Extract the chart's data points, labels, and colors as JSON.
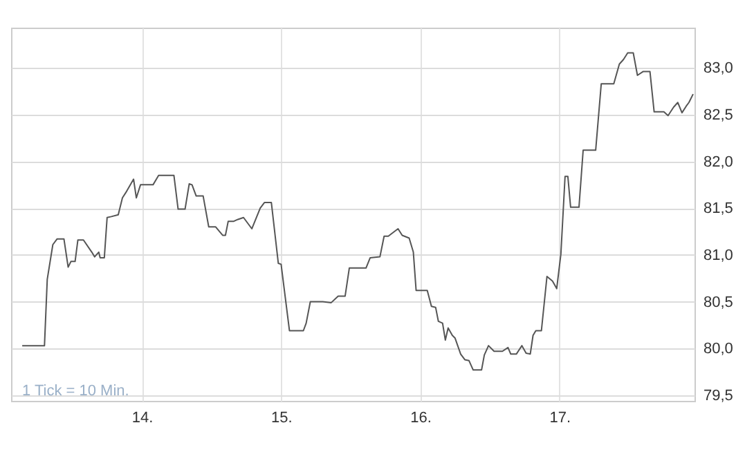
{
  "chart_data": {
    "type": "line",
    "annotations": [
      "1 Tick = 10 Min."
    ],
    "x": [
      13.14,
      13.3,
      13.32,
      13.36,
      13.39,
      13.44,
      13.47,
      13.49,
      13.52,
      13.54,
      13.58,
      13.64,
      13.66,
      13.69,
      13.7,
      13.73,
      13.75,
      13.78,
      13.83,
      13.86,
      13.89,
      13.94,
      13.96,
      13.99,
      14.08,
      14.12,
      14.23,
      14.26,
      14.31,
      14.34,
      14.36,
      14.39,
      14.44,
      14.48,
      14.53,
      14.58,
      14.6,
      14.62,
      14.66,
      14.69,
      14.73,
      14.79,
      14.85,
      14.88,
      14.93,
      14.98,
      15.0,
      15.06,
      15.16,
      15.18,
      15.21,
      15.3,
      15.36,
      15.41,
      15.46,
      15.49,
      15.61,
      15.64,
      15.71,
      15.74,
      15.77,
      15.84,
      15.87,
      15.92,
      15.95,
      15.97,
      16.05,
      16.08,
      16.11,
      16.13,
      16.16,
      16.18,
      16.2,
      16.23,
      16.25,
      16.29,
      16.32,
      16.35,
      16.38,
      16.44,
      16.46,
      16.49,
      16.53,
      16.59,
      16.63,
      16.65,
      16.69,
      16.73,
      16.76,
      16.79,
      16.81,
      16.83,
      16.87,
      16.91,
      16.95,
      16.98,
      17.01,
      17.04,
      17.06,
      17.08,
      17.14,
      17.17,
      17.26,
      17.3,
      17.39,
      17.43,
      17.46,
      17.49,
      17.53,
      17.56,
      17.6,
      17.65,
      17.68,
      17.75,
      17.78,
      17.82,
      17.85,
      17.88,
      17.91,
      17.93,
      17.96
    ],
    "series": [
      {
        "color": "#555555",
        "values": [
          80.03,
          80.03,
          80.74,
          81.11,
          81.17,
          81.17,
          80.87,
          80.93,
          80.93,
          81.16,
          81.16,
          81.03,
          80.98,
          81.03,
          80.97,
          80.97,
          81.4,
          81.41,
          81.43,
          81.61,
          81.68,
          81.81,
          81.61,
          81.75,
          81.75,
          81.85,
          81.85,
          81.49,
          81.49,
          81.76,
          81.75,
          81.63,
          81.63,
          81.3,
          81.3,
          81.21,
          81.21,
          81.36,
          81.36,
          81.38,
          81.4,
          81.28,
          81.5,
          81.56,
          81.56,
          80.91,
          80.9,
          80.19,
          80.19,
          80.27,
          80.5,
          80.5,
          80.49,
          80.56,
          80.56,
          80.86,
          80.86,
          80.97,
          80.98,
          81.2,
          81.2,
          81.28,
          81.21,
          81.18,
          81.03,
          80.62,
          80.62,
          80.45,
          80.44,
          80.29,
          80.27,
          80.09,
          80.22,
          80.14,
          80.11,
          79.94,
          79.88,
          79.87,
          79.77,
          79.77,
          79.93,
          80.03,
          79.97,
          79.97,
          80.01,
          79.94,
          79.94,
          80.03,
          79.95,
          79.94,
          80.14,
          80.19,
          80.19,
          80.77,
          80.72,
          80.64,
          81.01,
          81.84,
          81.84,
          81.51,
          81.51,
          82.12,
          82.12,
          82.83,
          82.83,
          83.04,
          83.09,
          83.16,
          83.16,
          82.92,
          82.96,
          82.96,
          82.53,
          82.53,
          82.49,
          82.58,
          82.63,
          82.52,
          82.59,
          82.63,
          82.72
        ]
      }
    ],
    "xlim": [
      13.06,
      17.97
    ],
    "ylim": [
      79.44,
      83.43
    ],
    "xticks": [
      {
        "value": 14,
        "label": "14."
      },
      {
        "value": 15,
        "label": "15."
      },
      {
        "value": 16,
        "label": "16."
      },
      {
        "value": 17,
        "label": "17."
      }
    ],
    "yticks": [
      {
        "value": 79.5,
        "label": "79,5"
      },
      {
        "value": 80,
        "label": "80,0"
      },
      {
        "value": 80.5,
        "label": "80,5"
      },
      {
        "value": 81,
        "label": "81,0"
      },
      {
        "value": 81.5,
        "label": "81,5"
      },
      {
        "value": 82,
        "label": "82,0"
      },
      {
        "value": 82.5,
        "label": "82,5"
      },
      {
        "value": 83,
        "label": "83,0"
      }
    ],
    "grid": true,
    "marker": "none",
    "line_style": "solid"
  }
}
